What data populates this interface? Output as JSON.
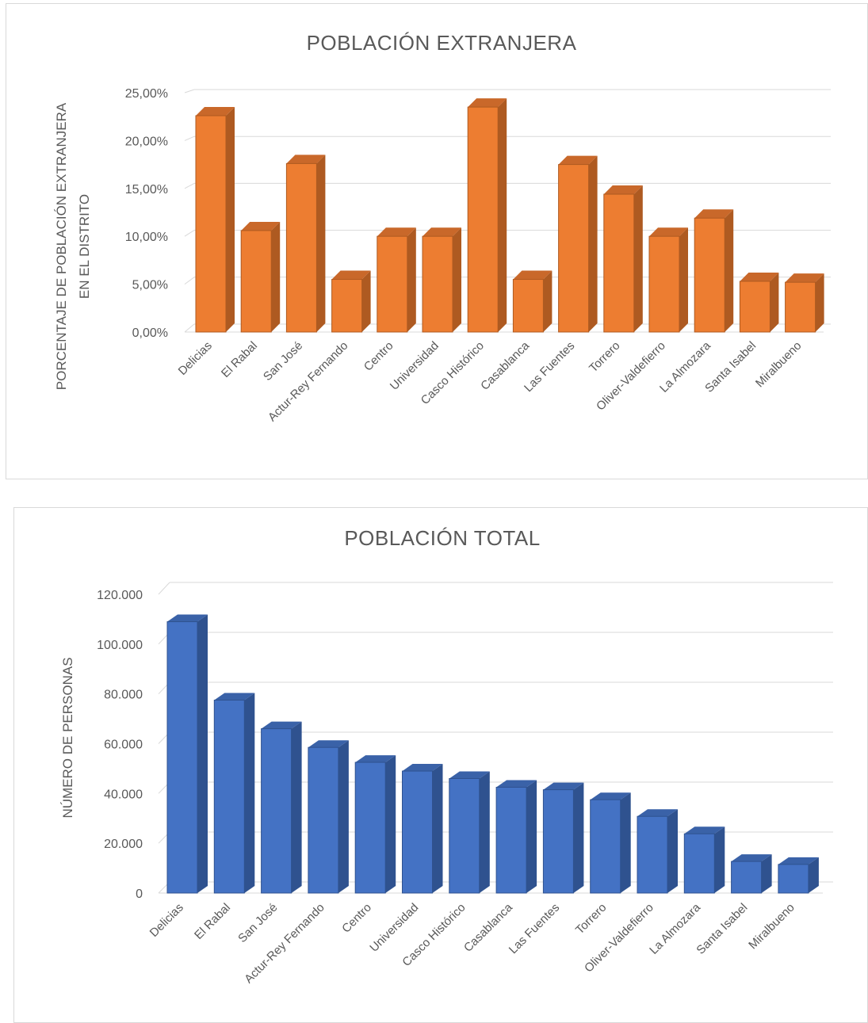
{
  "chart_data": [
    {
      "type": "bar",
      "title": "POBLACIÓN EXTRANJERA",
      "xlabel": "",
      "ylabel": [
        "PORCENTAJE DE POBLACIÓN EXTRANJERA",
        "EN EL DISTRITO"
      ],
      "categories": [
        "Delicias",
        "El Rabal",
        "San José",
        "Actur-Rey Fernando",
        "Centro",
        "Universidad",
        "Casco Histórico",
        "Casablanca",
        "Las Fuentes",
        "Torrero",
        "Oliver-Valdefierro",
        "La Almozara",
        "Santa Isabel",
        "Miralbueno"
      ],
      "values": [
        22.6,
        10.6,
        17.6,
        5.5,
        10.0,
        10.0,
        23.5,
        5.5,
        17.5,
        14.4,
        10.0,
        11.9,
        5.3,
        5.2
      ],
      "ylim": [
        0,
        25
      ],
      "yticks": [
        "0,00%",
        "5,00%",
        "10,00%",
        "15,00%",
        "20,00%",
        "25,00%"
      ],
      "grid": true,
      "legend": "none",
      "style": "3d-column",
      "color": "#ED7D31",
      "color_side": "#AE5A21",
      "color_top": "#C9682A"
    },
    {
      "type": "bar",
      "title": "POBLACIÓN TOTAL",
      "xlabel": "",
      "ylabel": [
        "NÚMERO DE PERSONAS"
      ],
      "categories": [
        "Delicias",
        "El Rabal",
        "San José",
        "Actur-Rey Fernando",
        "Centro",
        "Universidad",
        "Casco Histórico",
        "Casablanca",
        "Las Fuentes",
        "Torrero",
        "Oliver-Valdefierro",
        "La Almozara",
        "Santa Isabel",
        "Miralbueno"
      ],
      "values": [
        109000,
        77500,
        66000,
        58500,
        52500,
        49000,
        46000,
        42500,
        41500,
        37500,
        30800,
        23800,
        12700,
        11500
      ],
      "ylim": [
        0,
        120000
      ],
      "yticks": [
        "0",
        "20.000",
        "40.000",
        "60.000",
        "80.000",
        "100.000",
        "120.000"
      ],
      "grid": true,
      "legend": "none",
      "style": "3d-column",
      "color": "#4472C4",
      "color_side": "#2F528F",
      "color_top": "#3A62A8"
    }
  ]
}
